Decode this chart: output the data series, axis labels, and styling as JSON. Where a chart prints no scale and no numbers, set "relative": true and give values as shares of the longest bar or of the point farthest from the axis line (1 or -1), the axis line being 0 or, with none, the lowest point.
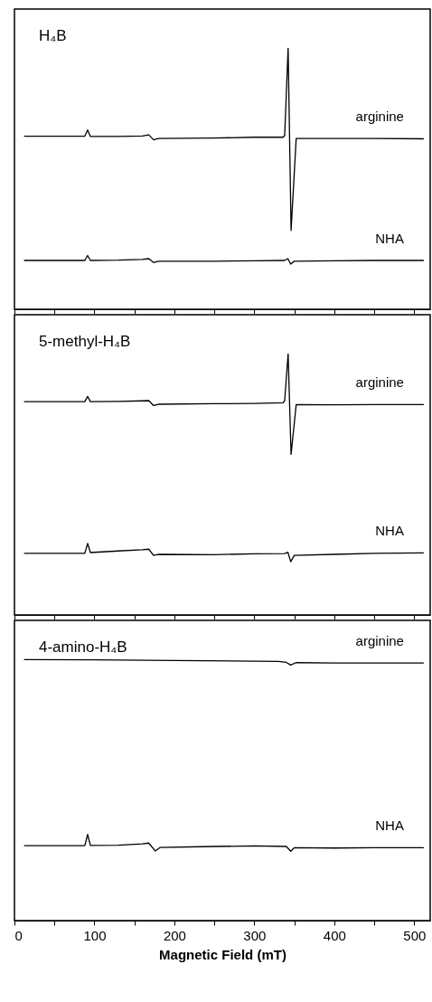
{
  "chart_data": [
    {
      "type": "line",
      "title": "H₄B",
      "relative": true,
      "tick_labels": false,
      "xlim": [
        0,
        520
      ],
      "xticks": [
        0,
        {
          "value": 50,
          "label": null
        },
        100,
        {
          "value": 150,
          "label": null
        },
        200,
        {
          "value": 250,
          "label": null
        },
        300,
        {
          "value": 350,
          "label": null
        },
        400,
        {
          "value": 450,
          "label": null
        },
        500
      ],
      "series": [
        {
          "name": "arginine",
          "color": "#000000",
          "x": [
            12,
            60,
            88,
            91.5,
            95,
            130,
            160,
            168,
            174,
            180,
            250,
            300,
            336,
            338,
            342.3,
            346,
            352.4,
            400,
            450,
            512
          ],
          "values": [
            0.663,
            0.663,
            0.663,
            0.687,
            0.662,
            0.662,
            0.664,
            0.668,
            0.649,
            0.654,
            0.656,
            0.659,
            0.659,
            0.666,
            1,
            0.302,
            0.654,
            0.654,
            0.654,
            0.653
          ]
        },
        {
          "name": "NHA",
          "color": "#000000",
          "x": [
            12,
            60,
            88,
            91.5,
            95,
            130,
            160,
            168,
            174,
            180,
            250,
            300,
            338,
            342,
            345.5,
            350,
            400,
            450,
            512
          ],
          "values": [
            0.187,
            0.187,
            0.187,
            0.206,
            0.187,
            0.188,
            0.191,
            0.194,
            0.179,
            0.184,
            0.184,
            0.186,
            0.187,
            0.194,
            0.173,
            0.184,
            0.186,
            0.187,
            0.187
          ]
        }
      ]
    },
    {
      "type": "line",
      "title": "5-methyl-H₄B",
      "relative": true,
      "tick_labels": false,
      "xlim": [
        0,
        520
      ],
      "xticks": [
        0,
        {
          "value": 50,
          "label": null
        },
        100,
        {
          "value": 150,
          "label": null
        },
        200,
        {
          "value": 250,
          "label": null
        },
        300,
        {
          "value": 350,
          "label": null
        },
        400,
        {
          "value": 450,
          "label": null
        },
        500
      ],
      "series": [
        {
          "name": "arginine",
          "color": "#000000",
          "x": [
            12,
            60,
            88,
            91.5,
            95,
            130,
            160,
            168,
            174,
            180,
            250,
            300,
            336,
            338,
            342.3,
            346,
            352.4,
            400,
            450,
            512
          ],
          "values": [
            0.817,
            0.817,
            0.817,
            0.837,
            0.817,
            0.818,
            0.82,
            0.821,
            0.802,
            0.807,
            0.809,
            0.81,
            0.813,
            0.821,
            1,
            0.615,
            0.806,
            0.805,
            0.806,
            0.806
          ]
        },
        {
          "name": "NHA",
          "color": "#000000",
          "x": [
            12,
            60,
            88,
            91.5,
            95,
            130,
            160,
            168,
            174,
            180,
            250,
            300,
            338,
            342,
            345.5,
            350,
            400,
            450,
            512
          ],
          "values": [
            0.236,
            0.236,
            0.236,
            0.274,
            0.239,
            0.245,
            0.25,
            0.252,
            0.228,
            0.232,
            0.231,
            0.234,
            0.235,
            0.24,
            0.204,
            0.228,
            0.232,
            0.236,
            0.238
          ]
        }
      ]
    },
    {
      "type": "line",
      "title": "4-amino-H₄B",
      "xlabel": "Magnetic Field  (mT)",
      "relative": true,
      "xlim": [
        0,
        520
      ],
      "xticks": [
        0,
        {
          "value": 50,
          "label": null
        },
        100,
        {
          "value": 150,
          "label": null
        },
        200,
        {
          "value": 250,
          "label": null
        },
        300,
        {
          "value": 350,
          "label": null
        },
        400,
        {
          "value": 450,
          "label": null
        },
        500
      ],
      "series": [
        {
          "name": "arginine",
          "color": "#000000",
          "x": [
            12,
            100,
            200,
            300,
            330,
            340,
            345.5,
            352,
            400,
            450,
            512
          ],
          "values": [
            1,
            0.999,
            0.996,
            0.994,
            0.993,
            0.989,
            0.979,
            0.988,
            0.987,
            0.987,
            0.987
          ]
        },
        {
          "name": "NHA",
          "color": "#000000",
          "x": [
            12,
            60,
            88,
            91.5,
            95,
            130,
            160,
            168,
            176,
            182,
            250,
            300,
            340,
            345.5,
            350,
            400,
            450,
            512
          ],
          "values": [
            0.287,
            0.287,
            0.287,
            0.33,
            0.288,
            0.289,
            0.294,
            0.297,
            0.267,
            0.28,
            0.284,
            0.286,
            0.284,
            0.266,
            0.279,
            0.278,
            0.279,
            0.279
          ]
        }
      ]
    }
  ]
}
